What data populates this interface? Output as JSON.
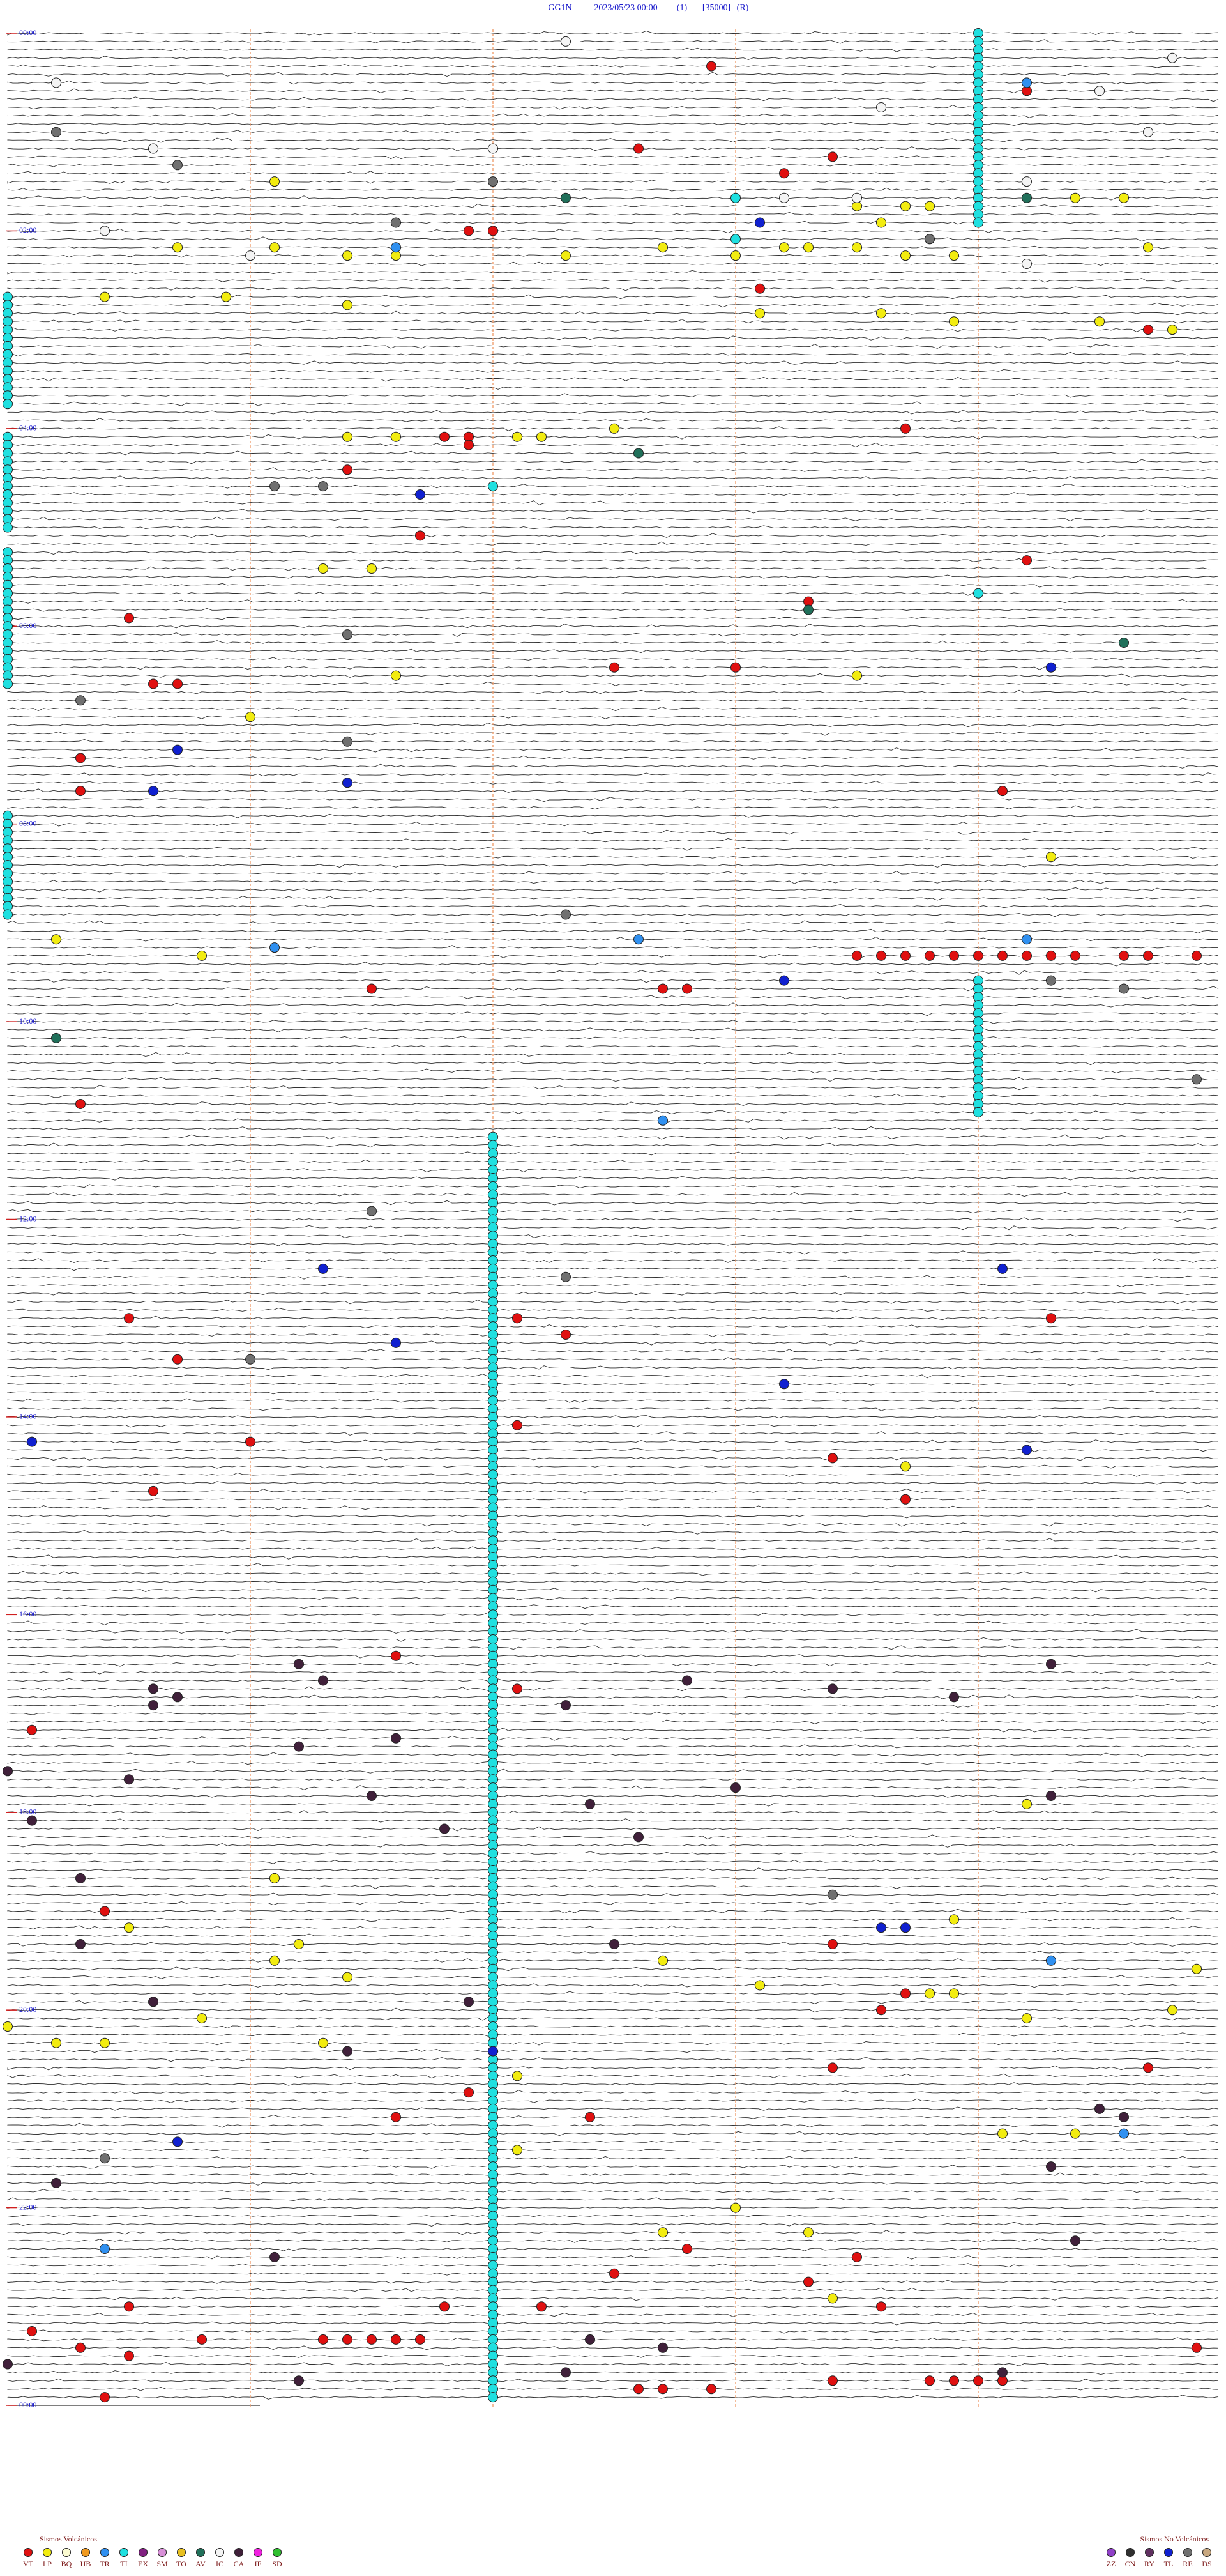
{
  "chart_data": {
    "type": "helicorder",
    "header": [
      "GG1N",
      "2023/05/23 00:00",
      "(1)",
      "[35000]",
      "(R)"
    ],
    "xlim": [
      0,
      5
    ],
    "xticks": [
      1,
      2,
      3,
      4
    ],
    "ylim": [
      0,
      1440
    ],
    "yticks": [
      {
        "value": 0,
        "label": "00:00"
      },
      {
        "value": 120,
        "label": "02:00"
      },
      {
        "value": 240,
        "label": "04:00"
      },
      {
        "value": 360,
        "label": "06:00"
      },
      {
        "value": 480,
        "label": "08:00"
      },
      {
        "value": 600,
        "label": "10:00"
      },
      {
        "value": 720,
        "label": "12:00"
      },
      {
        "value": 840,
        "label": "14:00"
      },
      {
        "value": 960,
        "label": "16:00"
      },
      {
        "value": 1080,
        "label": "18:00"
      },
      {
        "value": 1200,
        "label": "20:00"
      },
      {
        "value": 1320,
        "label": "22:00"
      },
      {
        "value": 1440,
        "label": "00:00"
      }
    ],
    "groups": [
      {
        "title": "Sismos Volcánicos",
        "series": [
          {
            "name": "VT",
            "color": "#e01010",
            "times": [
              22.9,
              39.2,
              72.6,
              78.4,
              88.2,
              121.9,
              122.0,
              158.1,
              184.7,
              243.7,
              246.8,
              246.9,
              251.9,
              266.4,
              306.7,
              324.2,
              348.3,
              355.5,
              387.5,
              388.0,
              395.6,
              395.7,
              440.3,
              460.3,
              464.1,
              563.5,
              563.6,
              563.7,
              563.8,
              563.9,
              564.0,
              564.1,
              564.2,
              564.3,
              564.4,
              564.6,
              564.7,
              564.9,
              581.5,
              582.7,
              582.8,
              650.3,
              780.5,
              782.1,
              784.3,
              792.3,
              805.7,
              847.1,
              856.0,
              868.4,
              885.6,
              893.7,
              986.6,
              1007.1,
              1030.1,
              1140.4,
              1163.4,
              1193.7,
              1203.6,
              1238.4,
              1239.7,
              1251.9,
              1252.0,
              1266.6,
              1267.4,
              1347.8,
              1353.5,
              1362.5,
              1368.3,
              1380.5,
              1381.8,
              1382.2,
              1383.6,
              1395.1,
              1400.8,
              1401.3,
              1401.4,
              1401.5,
              1401.6,
              1401.7,
              1405.3,
              1409.9,
              1410.5,
              1428.4,
              1428.8,
              1428.9,
              1429.0,
              1429.1,
              1432.6,
              1432.7,
              1432.9,
              1435.4
            ]
          },
          {
            "name": "LP",
            "color": "#f2ec10",
            "times": [
              91.1,
              104.4,
              104.6,
              108.5,
              108.7,
              108.8,
              118.6,
              128.8,
              130.7,
              131.1,
              132.7,
              133.2,
              133.3,
              133.5,
              134.7,
              136.4,
              136.6,
              137.3,
              138.0,
              138.7,
              138.9,
              160.4,
              160.9,
              166.4,
              173.1,
              173.6,
              178.9,
              179.5,
              184.8,
              242.5,
              246.4,
              246.6,
              247.1,
              247.2,
              326.3,
              326.5,
              391.6,
              393.5,
              416.0,
              504.3,
              550.2,
              560.8,
              873.7,
              1079.2,
              1121.1,
              1148.9,
              1150.5,
              1161.2,
              1171.1,
              1172.7,
              1179.9,
              1181.4,
              1188.1,
              1193.8,
              1193.9,
              1202.0,
              1204.8,
              1205.8,
              1209.2,
              1210.0,
              1220.2,
              1220.4,
              1221.3,
              1242.1,
              1279.1,
              1279.4,
              1287.1,
              1323.0,
              1337.7,
              1338.3,
              1378.4
            ]
          },
          {
            "name": "BQ",
            "color": "#fafad0",
            "times": []
          },
          {
            "name": "HB",
            "color": "#f09a20",
            "times": []
          },
          {
            "name": "TR",
            "color": "#3090f0",
            "times": [
              34.2,
              131.6,
              552.6,
              554.2,
              556.1,
              662.7,
              1174.3,
              1279.6,
              1345.4
            ]
          },
          {
            "name": "TI",
            "color": "#20e0e0",
            "times": [
              103.0,
              128.0,
              277.0,
              344.0
            ],
            "runs": [
              {
                "start": 4.0,
                "end": 119.0
              },
              {
                "start": 160.0,
                "end": 225.0
              },
              {
                "start": 245.0,
                "end": 300.0
              },
              {
                "start": 315.0,
                "end": 395.0
              },
              {
                "start": 475.0,
                "end": 535.0
              },
              {
                "start": 579.0,
                "end": 659.0
              },
              {
                "start": 672.0,
                "end": 1437.0
              }
            ]
          },
          {
            "name": "EX",
            "color": "#802080",
            "times": []
          },
          {
            "name": "SM",
            "color": "#d890d8",
            "times": []
          },
          {
            "name": "TO",
            "color": "#e8c020",
            "times": []
          },
          {
            "name": "AV",
            "color": "#20705a",
            "times": [
              102.3,
              104.2,
              257.6,
              353.3,
              374.6,
              610.2
            ]
          },
          {
            "name": "IC",
            "color": "#f4f4f4",
            "times": [
              7.3,
              19.8,
              30.2,
              39.5,
              48.6,
              64.7,
              70.6,
              72.0,
              94.2,
              103.2,
              103.5,
              120.4,
              136.0,
              144.2
            ]
          },
          {
            "name": "CA",
            "color": "#40203a",
            "times": [
              991.2,
              994.3,
              1001.3,
              1002.8,
              1005.6,
              1008.4,
              1010.7,
              1013.9,
              1015.6,
              1017.3,
              1036.6,
              1041.2,
              1055.0,
              1060.5,
              1068.0,
              1071.5,
              1074.3,
              1077.4,
              1085.1,
              1091.8,
              1097.6,
              1120.3,
              1160.3,
              1162.5,
              1195.6,
              1196.9,
              1226.4,
              1264.5,
              1269.6,
              1299.3,
              1305.2,
              1344.4,
              1351.1,
              1402.4,
              1407.7,
              1415.0,
              1422.3,
              1424.1,
              1426.2
            ]
          },
          {
            "name": "IF",
            "color": "#f020e0",
            "times": []
          },
          {
            "name": "SD",
            "color": "#30c030",
            "times": []
          }
        ]
      },
      {
        "title": "Sismos No Volcánicos",
        "series": [
          {
            "name": "ZZ",
            "color": "#9040c8",
            "times": []
          },
          {
            "name": "CN",
            "color": "#303030",
            "times": []
          },
          {
            "name": "RY",
            "color": "#603060",
            "times": []
          },
          {
            "name": "TL",
            "color": "#1020d0",
            "times": [
              118.1,
              281.7,
              389.3,
              435.7,
              456.4,
              460.6,
              578.2,
              751.3,
              754.1,
              796.6,
              823.2,
              855.1,
              864.2,
              1153.6,
              1153.7,
              1227.0,
              1280.7
            ]
          },
          {
            "name": "RE",
            "color": "#707070",
            "times": [
              60.2,
              80.7,
              92.0,
              116.6,
              128.8,
              276.1,
              276.3,
              366.4,
              405.3,
              431.4,
              537.3,
              579.3,
              584.6,
              639.9,
              716.5,
              757.3,
              806.0,
              1133.4,
              1290.4
            ]
          },
          {
            "name": "DS",
            "color": "#c8a880",
            "times": []
          }
        ]
      }
    ]
  }
}
